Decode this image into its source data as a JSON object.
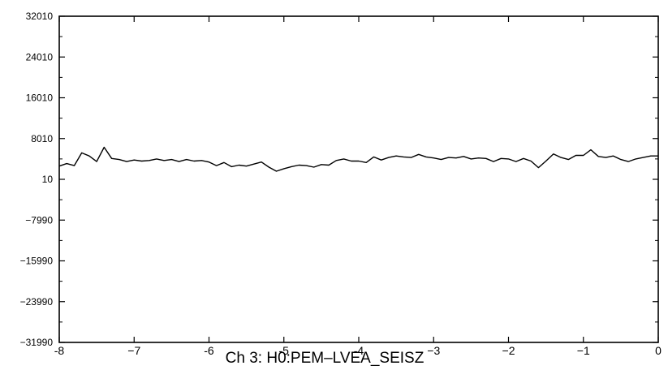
{
  "chart_data": {
    "type": "line",
    "title": "Ch 3:  H0:PEM–LVEA_SEISZ",
    "xlabel": "",
    "ylabel": "",
    "xlim": [
      -8,
      0
    ],
    "ylim": [
      -31990,
      32010
    ],
    "grid": false,
    "legend": "none",
    "x_ticks": [
      -8,
      -7,
      -6,
      -5,
      -4,
      -3,
      -2,
      -1,
      0
    ],
    "x_tick_labels": [
      "-8",
      "−7",
      "-6",
      "-5",
      "-4",
      "−3",
      "−2",
      "−1",
      "0"
    ],
    "y_ticks": [
      32010,
      24010,
      16010,
      8010,
      10,
      -7990,
      -15990,
      -23990,
      -31990
    ],
    "y_tick_labels": [
      "32010",
      "24010",
      "16010",
      "8010",
      "10",
      "−7990",
      "−15990",
      "−23990",
      "−31990"
    ],
    "line_color": "#000000",
    "series": [
      {
        "x": [
          -8.0,
          -7.9,
          -7.8,
          -7.7,
          -7.6,
          -7.5,
          -7.4,
          -7.3,
          -7.2,
          -7.1,
          -7.0,
          -6.9,
          -6.8,
          -6.7,
          -6.6,
          -6.5,
          -6.4,
          -6.3,
          -6.2,
          -6.1,
          -6.0,
          -5.9,
          -5.8,
          -5.7,
          -5.6,
          -5.5,
          -5.4,
          -5.3,
          -5.2,
          -5.1,
          -5.0,
          -4.9,
          -4.8,
          -4.7,
          -4.6,
          -4.5,
          -4.4,
          -4.3,
          -4.2,
          -4.1,
          -4.0,
          -3.9,
          -3.8,
          -3.7,
          -3.6,
          -3.5,
          -3.4,
          -3.3,
          -3.2,
          -3.1,
          -3.0,
          -2.9,
          -2.8,
          -2.7,
          -2.6,
          -2.5,
          -2.4,
          -2.3,
          -2.2,
          -2.1,
          -2.0,
          -1.9,
          -1.8,
          -1.7,
          -1.6,
          -1.5,
          -1.4,
          -1.3,
          -1.2,
          -1.1,
          -1.0,
          -0.9,
          -0.8,
          -0.7,
          -0.6,
          -0.5,
          -0.4,
          -0.3,
          -0.2,
          -0.1,
          0.0
        ],
        "values": [
          2600,
          3100,
          2700,
          5200,
          4600,
          3500,
          6300,
          4100,
          3900,
          3500,
          3800,
          3600,
          3700,
          4000,
          3700,
          3900,
          3500,
          3900,
          3600,
          3700,
          3400,
          2700,
          3300,
          2500,
          2800,
          2600,
          3000,
          3400,
          2400,
          1600,
          2100,
          2500,
          2800,
          2700,
          2400,
          2900,
          2800,
          3700,
          4000,
          3600,
          3600,
          3300,
          4400,
          3800,
          4300,
          4600,
          4400,
          4300,
          4900,
          4400,
          4200,
          3900,
          4300,
          4200,
          4500,
          4000,
          4200,
          4100,
          3500,
          4100,
          4000,
          3500,
          4100,
          3600,
          2300,
          3600,
          5000,
          4300,
          3900,
          4700,
          4700,
          5800,
          4500,
          4300,
          4600,
          3900,
          3500,
          4000,
          4300,
          4600,
          4600
        ]
      }
    ]
  }
}
